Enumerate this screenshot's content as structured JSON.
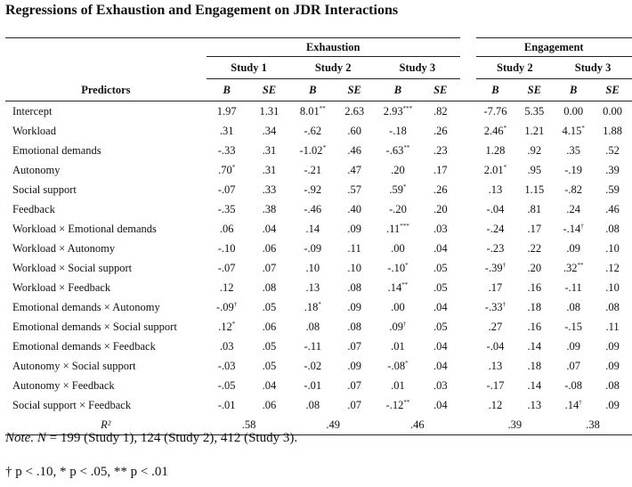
{
  "title": "Regressions of Exhaustion and Engagement on JDR Interactions",
  "groups": {
    "exhaustion": "Exhaustion",
    "engagement": "Engagement"
  },
  "studies": {
    "s1": "Study 1",
    "s2": "Study 2",
    "s3": "Study 3"
  },
  "labels": {
    "predictors": "Predictors",
    "b": "B",
    "se": "SE",
    "r2": "R²"
  },
  "rows": [
    {
      "p": "Intercept",
      "v": [
        [
          "1.97",
          ""
        ],
        [
          "1.31",
          ""
        ],
        [
          "8.01",
          "**"
        ],
        [
          "2.63",
          ""
        ],
        [
          "2.93",
          "***"
        ],
        [
          ".82",
          ""
        ],
        [
          "-7.76",
          ""
        ],
        [
          "5.35",
          ""
        ],
        [
          "0.00",
          ""
        ],
        [
          "0.00",
          ""
        ]
      ]
    },
    {
      "p": "Workload",
      "v": [
        [
          ".31",
          ""
        ],
        [
          ".34",
          ""
        ],
        [
          "-.62",
          ""
        ],
        [
          ".60",
          ""
        ],
        [
          "-.18",
          ""
        ],
        [
          ".26",
          ""
        ],
        [
          "2.46",
          "*"
        ],
        [
          "1.21",
          ""
        ],
        [
          "4.15",
          "*"
        ],
        [
          "1.88",
          ""
        ]
      ]
    },
    {
      "p": "Emotional demands",
      "v": [
        [
          "-.33",
          ""
        ],
        [
          ".31",
          ""
        ],
        [
          "-1.02",
          "*"
        ],
        [
          ".46",
          ""
        ],
        [
          "-.63",
          "**"
        ],
        [
          ".23",
          ""
        ],
        [
          "1.28",
          ""
        ],
        [
          ".92",
          ""
        ],
        [
          ".35",
          ""
        ],
        [
          ".52",
          ""
        ]
      ]
    },
    {
      "p": "Autonomy",
      "v": [
        [
          ".70",
          "*"
        ],
        [
          ".31",
          ""
        ],
        [
          "-.21",
          ""
        ],
        [
          ".47",
          ""
        ],
        [
          ".20",
          ""
        ],
        [
          ".17",
          ""
        ],
        [
          "2.01",
          "*"
        ],
        [
          ".95",
          ""
        ],
        [
          "-.19",
          ""
        ],
        [
          ".39",
          ""
        ]
      ]
    },
    {
      "p": "Social support",
      "v": [
        [
          "-.07",
          ""
        ],
        [
          ".33",
          ""
        ],
        [
          "-.92",
          ""
        ],
        [
          ".57",
          ""
        ],
        [
          ".59",
          "*"
        ],
        [
          ".26",
          ""
        ],
        [
          ".13",
          ""
        ],
        [
          "1.15",
          ""
        ],
        [
          "-.82",
          ""
        ],
        [
          ".59",
          ""
        ]
      ]
    },
    {
      "p": "Feedback",
      "v": [
        [
          "-.35",
          ""
        ],
        [
          ".38",
          ""
        ],
        [
          "-.46",
          ""
        ],
        [
          ".40",
          ""
        ],
        [
          "-.20",
          ""
        ],
        [
          ".20",
          ""
        ],
        [
          "-.04",
          ""
        ],
        [
          ".81",
          ""
        ],
        [
          ".24",
          ""
        ],
        [
          ".46",
          ""
        ]
      ]
    },
    {
      "p": "Workload × Emotional demands",
      "v": [
        [
          ".06",
          ""
        ],
        [
          ".04",
          ""
        ],
        [
          ".14",
          ""
        ],
        [
          ".09",
          ""
        ],
        [
          ".11",
          "***"
        ],
        [
          ".03",
          ""
        ],
        [
          "-.24",
          ""
        ],
        [
          ".17",
          ""
        ],
        [
          "-.14",
          "†"
        ],
        [
          ".08",
          ""
        ]
      ]
    },
    {
      "p": "Workload × Autonomy",
      "v": [
        [
          "-.10",
          ""
        ],
        [
          ".06",
          ""
        ],
        [
          "-.09",
          ""
        ],
        [
          ".11",
          ""
        ],
        [
          ".00",
          ""
        ],
        [
          ".04",
          ""
        ],
        [
          "-.23",
          ""
        ],
        [
          ".22",
          ""
        ],
        [
          ".09",
          ""
        ],
        [
          ".10",
          ""
        ]
      ]
    },
    {
      "p": "Workload × Social support",
      "v": [
        [
          "-.07",
          ""
        ],
        [
          ".07",
          ""
        ],
        [
          ".10",
          ""
        ],
        [
          ".10",
          ""
        ],
        [
          "-.10",
          "*"
        ],
        [
          ".05",
          ""
        ],
        [
          "-.39",
          "†"
        ],
        [
          ".20",
          ""
        ],
        [
          ".32",
          "**"
        ],
        [
          ".12",
          ""
        ]
      ]
    },
    {
      "p": "Workload × Feedback",
      "v": [
        [
          ".12",
          ""
        ],
        [
          ".08",
          ""
        ],
        [
          ".13",
          ""
        ],
        [
          ".08",
          ""
        ],
        [
          ".14",
          "**"
        ],
        [
          ".05",
          ""
        ],
        [
          ".17",
          ""
        ],
        [
          ".16",
          ""
        ],
        [
          "-.11",
          ""
        ],
        [
          ".10",
          ""
        ]
      ]
    },
    {
      "p": "Emotional demands × Autonomy",
      "v": [
        [
          "-.09",
          "†"
        ],
        [
          ".05",
          ""
        ],
        [
          ".18",
          "*"
        ],
        [
          ".09",
          ""
        ],
        [
          ".00",
          ""
        ],
        [
          ".04",
          ""
        ],
        [
          "-.33",
          "†"
        ],
        [
          ".18",
          ""
        ],
        [
          ".08",
          ""
        ],
        [
          ".08",
          ""
        ]
      ]
    },
    {
      "p": "Emotional demands × Social support",
      "v": [
        [
          ".12",
          "*"
        ],
        [
          ".06",
          ""
        ],
        [
          ".08",
          ""
        ],
        [
          ".08",
          ""
        ],
        [
          ".09",
          "†"
        ],
        [
          ".05",
          ""
        ],
        [
          ".27",
          ""
        ],
        [
          ".16",
          ""
        ],
        [
          "-.15",
          ""
        ],
        [
          ".11",
          ""
        ]
      ]
    },
    {
      "p": "Emotional demands × Feedback",
      "v": [
        [
          ".03",
          ""
        ],
        [
          ".05",
          ""
        ],
        [
          "-.11",
          ""
        ],
        [
          ".07",
          ""
        ],
        [
          ".01",
          ""
        ],
        [
          ".04",
          ""
        ],
        [
          "-.04",
          ""
        ],
        [
          ".14",
          ""
        ],
        [
          ".09",
          ""
        ],
        [
          ".09",
          ""
        ]
      ]
    },
    {
      "p": "Autonomy × Social support",
      "v": [
        [
          "-.03",
          ""
        ],
        [
          ".05",
          ""
        ],
        [
          "-.02",
          ""
        ],
        [
          ".09",
          ""
        ],
        [
          "-.08",
          "*"
        ],
        [
          ".04",
          ""
        ],
        [
          ".13",
          ""
        ],
        [
          ".18",
          ""
        ],
        [
          ".07",
          ""
        ],
        [
          ".09",
          ""
        ]
      ]
    },
    {
      "p": "Autonomy × Feedback",
      "v": [
        [
          "-.05",
          ""
        ],
        [
          ".04",
          ""
        ],
        [
          "-.01",
          ""
        ],
        [
          ".07",
          ""
        ],
        [
          ".01",
          ""
        ],
        [
          ".03",
          ""
        ],
        [
          "-.17",
          ""
        ],
        [
          ".14",
          ""
        ],
        [
          "-.08",
          ""
        ],
        [
          ".08",
          ""
        ]
      ]
    },
    {
      "p": "Social support × Feedback",
      "v": [
        [
          "-.01",
          ""
        ],
        [
          ".06",
          ""
        ],
        [
          ".08",
          ""
        ],
        [
          ".07",
          ""
        ],
        [
          "-.12",
          "**"
        ],
        [
          ".04",
          ""
        ],
        [
          ".12",
          ""
        ],
        [
          ".13",
          ""
        ],
        [
          ".14",
          "†"
        ],
        [
          ".09",
          ""
        ]
      ]
    }
  ],
  "r2": {
    "s1": ".58",
    "s2": ".49",
    "s3": ".46",
    "e2": ".39",
    "e3": ".38"
  },
  "note": {
    "label": "Note.",
    "n_letter": "N",
    "text": " = 199 (Study 1), 124 (Study 2), 412 (Study 3)."
  },
  "significance": "† p < .10, * p < .05, ** p < .01"
}
